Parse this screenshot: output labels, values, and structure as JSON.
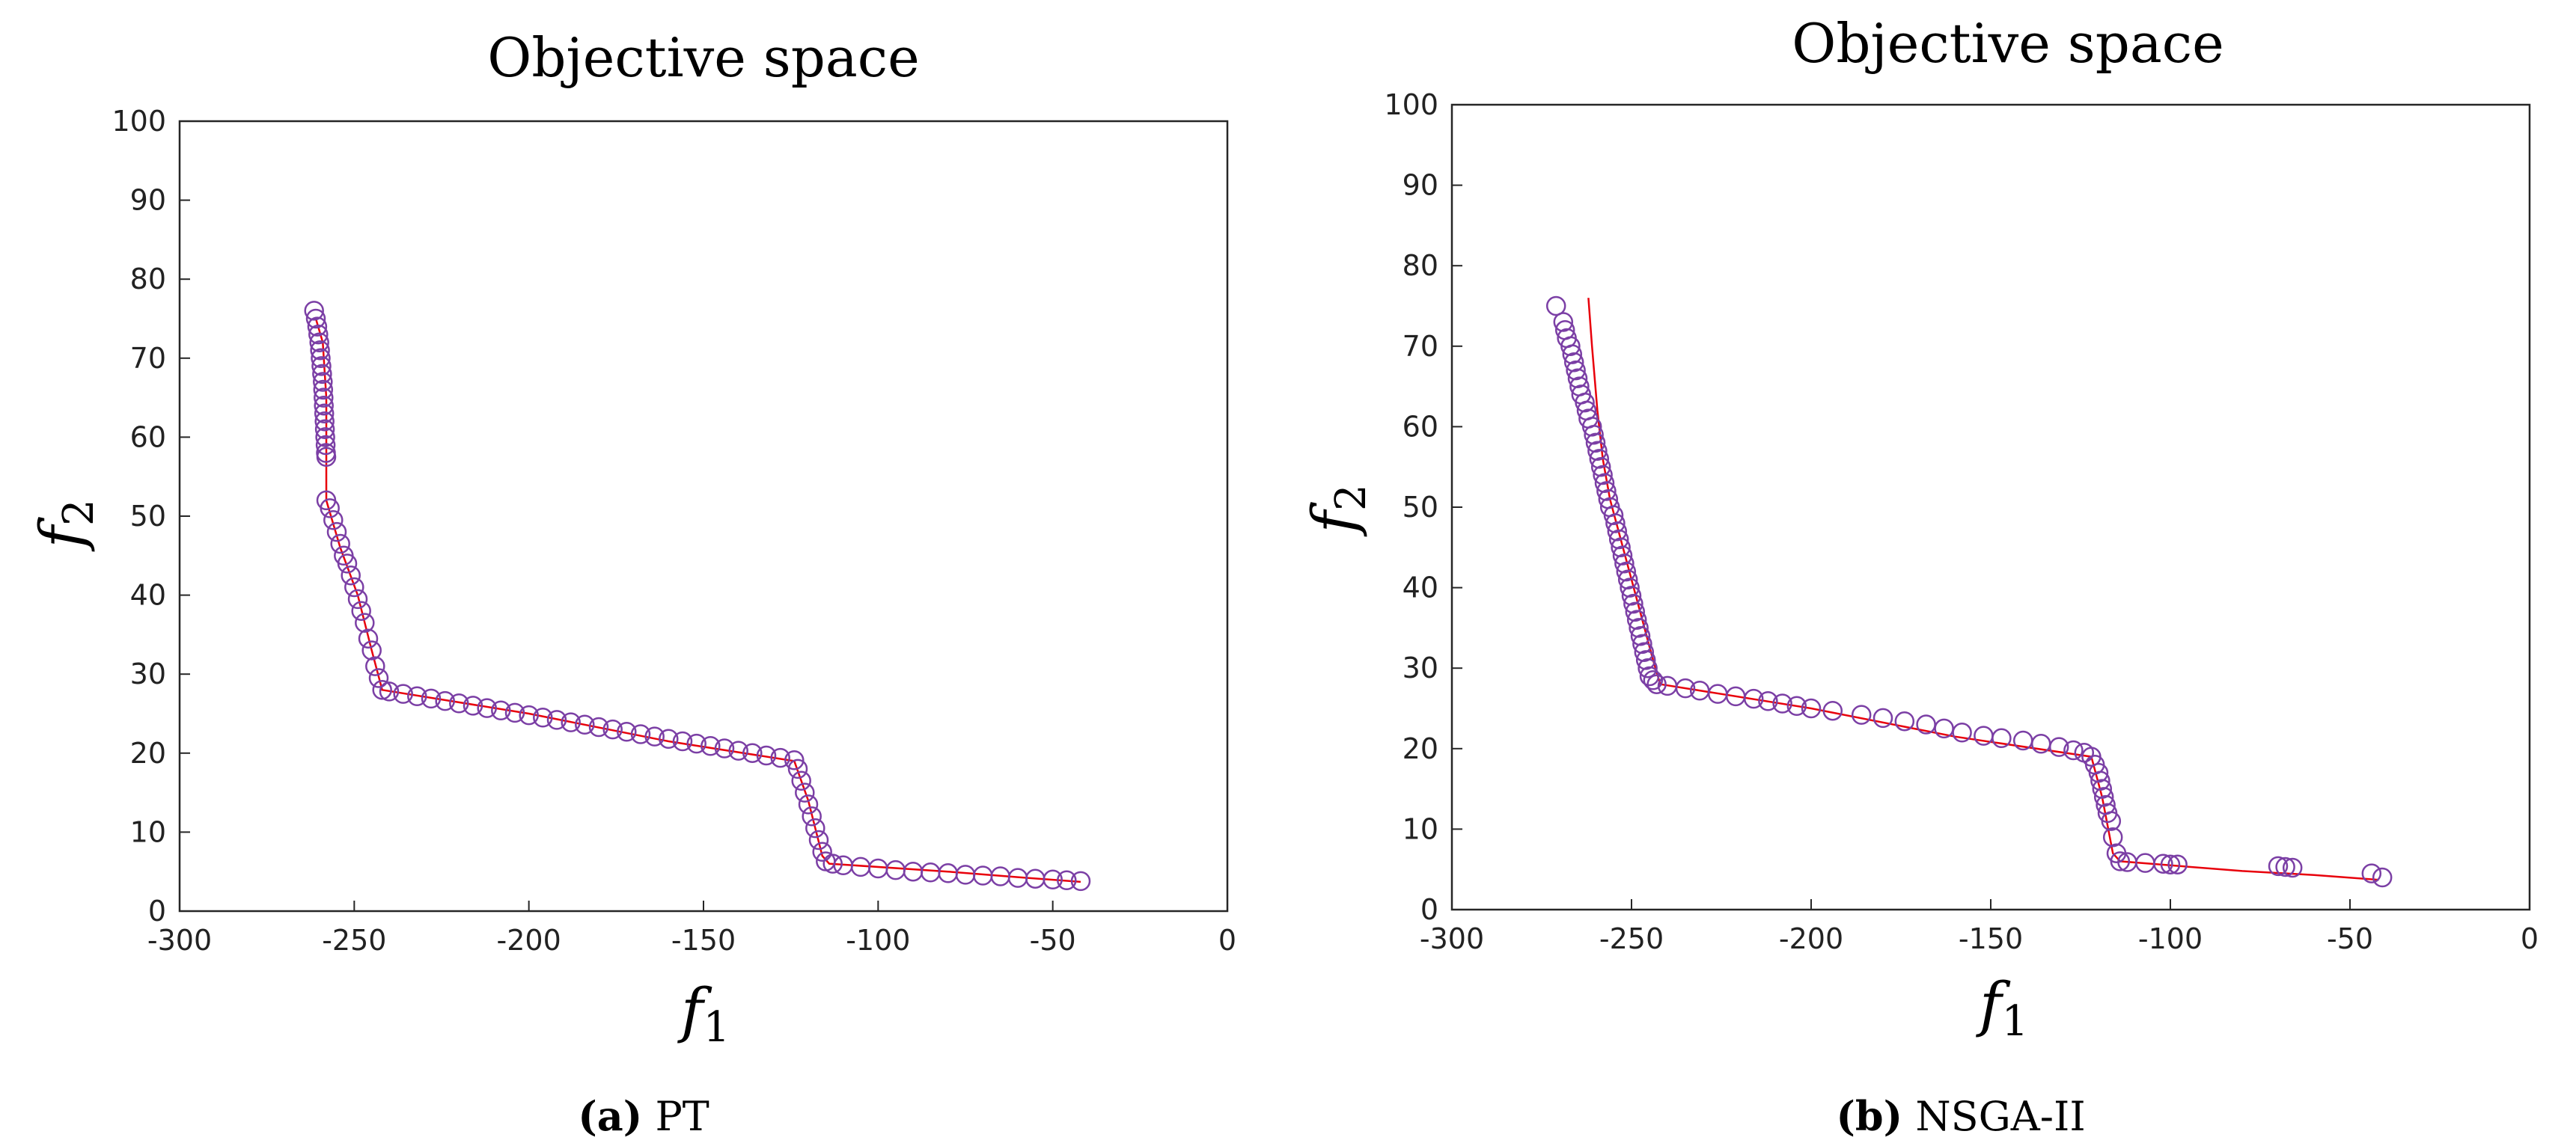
{
  "chart_data": [
    {
      "type": "scatter",
      "title": "Objective space",
      "xlabel": "f",
      "xlabel_sub": "1",
      "ylabel": "f",
      "ylabel_sub": "2",
      "xlim": [
        -300,
        0
      ],
      "ylim": [
        0,
        100
      ],
      "xticks": [
        -300,
        -250,
        -200,
        -150,
        -100,
        -50,
        0
      ],
      "yticks": [
        0,
        10,
        20,
        30,
        40,
        50,
        60,
        70,
        80,
        90,
        100
      ],
      "caption_letter": "(a)",
      "caption_text": "PT",
      "marker_color": "#7b3fa5",
      "line_color": "#e8000b",
      "curve": [
        [
          -261,
          75
        ],
        [
          -259,
          72
        ],
        [
          -258,
          65
        ],
        [
          -258,
          57
        ],
        [
          -258,
          52
        ],
        [
          -254,
          46
        ],
        [
          -249,
          40
        ],
        [
          -245,
          33
        ],
        [
          -242,
          28
        ],
        [
          -200,
          25
        ],
        [
          -160,
          21.5
        ],
        [
          -124,
          19
        ],
        [
          -120,
          14
        ],
        [
          -116,
          7
        ],
        [
          -114,
          6
        ],
        [
          -80,
          5
        ],
        [
          -60,
          4.3
        ],
        [
          -42,
          3.7
        ]
      ],
      "points": [
        [
          -261.5,
          76
        ],
        [
          -261,
          75
        ],
        [
          -260.6,
          74
        ],
        [
          -260.3,
          73
        ],
        [
          -260,
          72
        ],
        [
          -259.8,
          71
        ],
        [
          -259.6,
          70
        ],
        [
          -259.4,
          69
        ],
        [
          -259.2,
          68
        ],
        [
          -259,
          67
        ],
        [
          -258.9,
          66
        ],
        [
          -258.8,
          65
        ],
        [
          -258.7,
          64
        ],
        [
          -258.6,
          63
        ],
        [
          -258.5,
          62
        ],
        [
          -258.4,
          61
        ],
        [
          -258.3,
          60
        ],
        [
          -258.2,
          59
        ],
        [
          -258.1,
          58
        ],
        [
          -258,
          57.5
        ],
        [
          -258,
          52
        ],
        [
          -257,
          51
        ],
        [
          -256,
          49.5
        ],
        [
          -255,
          48
        ],
        [
          -254,
          46.5
        ],
        [
          -253,
          45
        ],
        [
          -252,
          44
        ],
        [
          -251,
          42.5
        ],
        [
          -250,
          41
        ],
        [
          -249,
          39.5
        ],
        [
          -248,
          38
        ],
        [
          -247,
          36.5
        ],
        [
          -246,
          34.5
        ],
        [
          -245,
          33
        ],
        [
          -244,
          31
        ],
        [
          -243,
          29.5
        ],
        [
          -242,
          28
        ],
        [
          -240,
          27.8
        ],
        [
          -236,
          27.5
        ],
        [
          -232,
          27.2
        ],
        [
          -228,
          26.9
        ],
        [
          -224,
          26.6
        ],
        [
          -220,
          26.3
        ],
        [
          -216,
          26
        ],
        [
          -212,
          25.7
        ],
        [
          -208,
          25.4
        ],
        [
          -204,
          25.1
        ],
        [
          -200,
          24.8
        ],
        [
          -196,
          24.5
        ],
        [
          -192,
          24.2
        ],
        [
          -188,
          23.9
        ],
        [
          -184,
          23.6
        ],
        [
          -180,
          23.3
        ],
        [
          -176,
          23
        ],
        [
          -172,
          22.7
        ],
        [
          -168,
          22.4
        ],
        [
          -164,
          22.1
        ],
        [
          -160,
          21.8
        ],
        [
          -156,
          21.5
        ],
        [
          -152,
          21.2
        ],
        [
          -148,
          20.9
        ],
        [
          -144,
          20.6
        ],
        [
          -140,
          20.3
        ],
        [
          -136,
          20
        ],
        [
          -132,
          19.7
        ],
        [
          -128,
          19.4
        ],
        [
          -124,
          19.1
        ],
        [
          -123,
          18
        ],
        [
          -122,
          16.5
        ],
        [
          -121,
          15
        ],
        [
          -120,
          13.5
        ],
        [
          -119,
          12
        ],
        [
          -118,
          10.5
        ],
        [
          -117,
          9
        ],
        [
          -116,
          7.5
        ],
        [
          -115,
          6.3
        ],
        [
          -113,
          6
        ],
        [
          -110,
          5.8
        ],
        [
          -105,
          5.6
        ],
        [
          -100,
          5.4
        ],
        [
          -95,
          5.2
        ],
        [
          -90,
          5
        ],
        [
          -85,
          4.9
        ],
        [
          -80,
          4.8
        ],
        [
          -75,
          4.6
        ],
        [
          -70,
          4.5
        ],
        [
          -65,
          4.4
        ],
        [
          -60,
          4.2
        ],
        [
          -55,
          4.1
        ],
        [
          -50,
          4
        ],
        [
          -46,
          3.9
        ],
        [
          -42,
          3.8
        ]
      ]
    },
    {
      "type": "scatter",
      "title": "Objective space",
      "xlabel": "f",
      "xlabel_sub": "1",
      "ylabel": "f",
      "ylabel_sub": "2",
      "xlim": [
        -300,
        0
      ],
      "ylim": [
        0,
        100
      ],
      "xticks": [
        -300,
        -250,
        -200,
        -150,
        -100,
        -50,
        0
      ],
      "yticks": [
        0,
        10,
        20,
        30,
        40,
        50,
        60,
        70,
        80,
        90,
        100
      ],
      "caption_letter": "(b)",
      "caption_text": "NSGA-II",
      "marker_color": "#7b3fa5",
      "line_color": "#e8000b",
      "curve": [
        [
          -262,
          76
        ],
        [
          -261,
          70
        ],
        [
          -259.5,
          62
        ],
        [
          -258,
          56
        ],
        [
          -256,
          51
        ],
        [
          -253,
          46
        ],
        [
          -250,
          41
        ],
        [
          -247,
          36
        ],
        [
          -244,
          31
        ],
        [
          -242,
          28
        ],
        [
          -200,
          25
        ],
        [
          -160,
          21.5
        ],
        [
          -122,
          19
        ],
        [
          -119,
          14
        ],
        [
          -116,
          7
        ],
        [
          -114,
          6
        ],
        [
          -100,
          5.5
        ],
        [
          -80,
          4.8
        ],
        [
          -60,
          4.3
        ],
        [
          -42,
          3.7
        ]
      ],
      "points": [
        [
          -271,
          75
        ],
        [
          -269,
          73
        ],
        [
          -268.5,
          72
        ],
        [
          -268,
          71
        ],
        [
          -267,
          70
        ],
        [
          -266.5,
          69
        ],
        [
          -266,
          68
        ],
        [
          -265.5,
          67
        ],
        [
          -265,
          66
        ],
        [
          -264.5,
          65
        ],
        [
          -264,
          64
        ],
        [
          -263,
          63
        ],
        [
          -262.5,
          62
        ],
        [
          -262,
          61
        ],
        [
          -261,
          60
        ],
        [
          -260.5,
          59
        ],
        [
          -260,
          58
        ],
        [
          -259.5,
          57
        ],
        [
          -259,
          56
        ],
        [
          -258.5,
          55
        ],
        [
          -258,
          54
        ],
        [
          -257.5,
          53
        ],
        [
          -257,
          52
        ],
        [
          -256.5,
          51
        ],
        [
          -256,
          50
        ],
        [
          -255,
          49
        ],
        [
          -254.5,
          48
        ],
        [
          -254,
          47
        ],
        [
          -253.5,
          46
        ],
        [
          -253,
          45
        ],
        [
          -252.5,
          44
        ],
        [
          -252,
          43
        ],
        [
          -251.5,
          42
        ],
        [
          -251,
          41
        ],
        [
          -250.5,
          40
        ],
        [
          -250,
          39
        ],
        [
          -249.5,
          38
        ],
        [
          -249,
          37
        ],
        [
          -248.5,
          36
        ],
        [
          -248,
          35
        ],
        [
          -247.5,
          34
        ],
        [
          -247,
          33
        ],
        [
          -246.5,
          32
        ],
        [
          -246,
          31
        ],
        [
          -245.5,
          30
        ],
        [
          -245,
          29
        ],
        [
          -244,
          28.5
        ],
        [
          -243,
          28
        ],
        [
          -240,
          27.8
        ],
        [
          -235,
          27.5
        ],
        [
          -231,
          27.2
        ],
        [
          -226,
          26.8
        ],
        [
          -221,
          26.5
        ],
        [
          -216,
          26.2
        ],
        [
          -212,
          25.9
        ],
        [
          -208,
          25.6
        ],
        [
          -204,
          25.3
        ],
        [
          -200,
          25
        ],
        [
          -194,
          24.7
        ],
        [
          -186,
          24.2
        ],
        [
          -180,
          23.8
        ],
        [
          -174,
          23.4
        ],
        [
          -168,
          23
        ],
        [
          -163,
          22.5
        ],
        [
          -158,
          22
        ],
        [
          -152,
          21.6
        ],
        [
          -147,
          21.3
        ],
        [
          -141,
          21
        ],
        [
          -136,
          20.6
        ],
        [
          -131,
          20.2
        ],
        [
          -127,
          19.8
        ],
        [
          -124,
          19.5
        ],
        [
          -122,
          19
        ],
        [
          -121,
          18
        ],
        [
          -120,
          17
        ],
        [
          -119.5,
          16
        ],
        [
          -119,
          15
        ],
        [
          -118.5,
          14
        ],
        [
          -118,
          13
        ],
        [
          -117.5,
          12
        ],
        [
          -116.5,
          11
        ],
        [
          -116,
          9
        ],
        [
          -115,
          7
        ],
        [
          -114,
          6
        ],
        [
          -112,
          5.9
        ],
        [
          -107,
          5.8
        ],
        [
          -102,
          5.7
        ],
        [
          -100,
          5.6
        ],
        [
          -98,
          5.6
        ],
        [
          -70,
          5.4
        ],
        [
          -68,
          5.3
        ],
        [
          -66,
          5.2
        ],
        [
          -44,
          4.5
        ],
        [
          -41,
          4
        ]
      ]
    }
  ]
}
